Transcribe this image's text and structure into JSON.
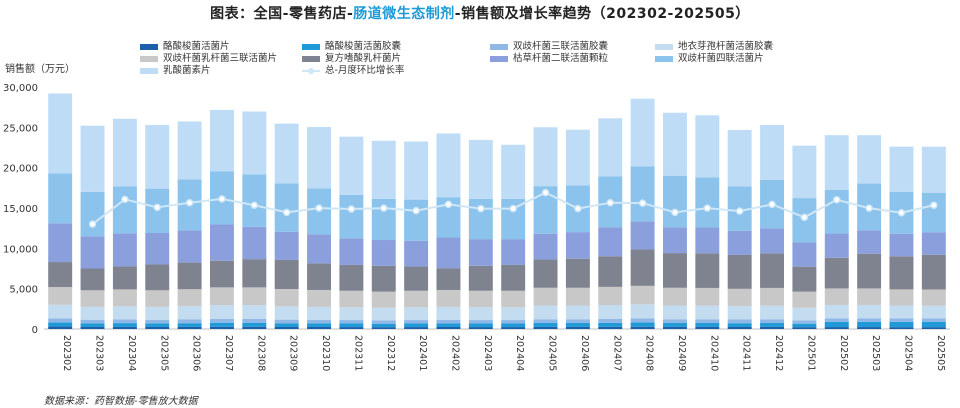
{
  "title_parts": {
    "prefix": "图表：全国-零售药店-",
    "highlight": "肠道微生态制剂",
    "suffix": "-销售额及增长率趋势（202302-202505）"
  },
  "source": "数据来源：药智数据-零售放大数据",
  "chart_data": {
    "type": "bar",
    "stacked": true,
    "ylabel": "销售额（万元）",
    "ylim": [
      0,
      30000
    ],
    "yticks": [
      0,
      5000,
      10000,
      15000,
      20000,
      25000,
      30000
    ],
    "ytick_labels": [
      "0",
      "5,000",
      "10,000",
      "15,000",
      "20,000",
      "25,000",
      "30,000"
    ],
    "categories": [
      "202302",
      "202303",
      "202304",
      "202305",
      "202306",
      "202307",
      "202308",
      "202309",
      "202310",
      "202311",
      "202312",
      "202401",
      "202402",
      "202403",
      "202404",
      "202405",
      "202406",
      "202407",
      "202408",
      "202409",
      "202410",
      "202411",
      "202412",
      "202501",
      "202502",
      "202503",
      "202504",
      "202505"
    ],
    "series": [
      {
        "name": "酪酸梭菌活菌片",
        "color": "#1d5fa8",
        "values": [
          300,
          250,
          260,
          250,
          260,
          280,
          280,
          250,
          250,
          240,
          230,
          240,
          250,
          240,
          240,
          260,
          260,
          270,
          280,
          260,
          260,
          250,
          260,
          230,
          240,
          240,
          230,
          230
        ]
      },
      {
        "name": "酪酸梭菌活菌胶囊",
        "color": "#1f9ad6",
        "values": [
          500,
          450,
          470,
          450,
          460,
          500,
          500,
          460,
          450,
          440,
          430,
          440,
          450,
          440,
          440,
          480,
          480,
          500,
          520,
          480,
          480,
          470,
          480,
          430,
          650,
          650,
          650,
          640
        ]
      },
      {
        "name": "双歧杆菌三联活菌胶囊",
        "color": "#8fb8e6",
        "values": [
          500,
          450,
          460,
          450,
          460,
          480,
          480,
          450,
          440,
          430,
          420,
          430,
          440,
          430,
          430,
          470,
          470,
          480,
          500,
          470,
          470,
          460,
          470,
          420,
          440,
          440,
          430,
          430
        ]
      },
      {
        "name": "地衣芽孢杆菌活菌胶囊",
        "color": "#c4dcef",
        "values": [
          1700,
          1600,
          1620,
          1600,
          1650,
          1700,
          1700,
          1650,
          1600,
          1580,
          1550,
          1580,
          1600,
          1580,
          1580,
          1700,
          1700,
          1720,
          1750,
          1700,
          1680,
          1650,
          1680,
          1550,
          1650,
          1650,
          1600,
          1600
        ]
      },
      {
        "name": "双歧杆菌乳杆菌三联活菌片",
        "color": "#c8c8c8",
        "values": [
          2200,
          2050,
          2100,
          2050,
          2100,
          2200,
          2200,
          2150,
          2100,
          2050,
          2000,
          2050,
          2100,
          2050,
          2050,
          2200,
          2200,
          2250,
          2300,
          2200,
          2200,
          2150,
          2200,
          2000,
          2050,
          2050,
          2000,
          2000
        ]
      },
      {
        "name": "复方嗜酸乳杆菌片",
        "color": "#7f8390",
        "values": [
          3100,
          2700,
          2850,
          3200,
          3300,
          3300,
          3500,
          3600,
          3300,
          3200,
          3200,
          3000,
          2700,
          3100,
          3200,
          3500,
          3600,
          3800,
          4500,
          4300,
          4300,
          4200,
          4300,
          3100,
          3800,
          4300,
          4100,
          4300
        ]
      },
      {
        "name": "枯草杆菌二联活菌颗粒",
        "color": "#8a9fdc",
        "values": [
          4800,
          4000,
          4100,
          3900,
          4000,
          4500,
          4000,
          3500,
          3600,
          3300,
          3200,
          3200,
          3800,
          3300,
          3200,
          3200,
          3300,
          3600,
          3500,
          3200,
          3200,
          3000,
          3100,
          3000,
          3000,
          2900,
          2800,
          2800
        ]
      },
      {
        "name": "双歧杆菌四联活菌片",
        "color": "#8bc3ec",
        "values": [
          6200,
          5500,
          5800,
          5500,
          6300,
          6600,
          6500,
          6000,
          5700,
          5400,
          5100,
          5100,
          5000,
          5000,
          5000,
          5900,
          5800,
          6300,
          6800,
          6400,
          6200,
          5500,
          6000,
          5500,
          5400,
          5800,
          5200,
          4900
        ]
      },
      {
        "name": "乳酸菌素片",
        "color": "#bfdcf7",
        "values": [
          9900,
          8200,
          8400,
          7900,
          7200,
          7600,
          7800,
          7400,
          7600,
          7200,
          7200,
          7200,
          7900,
          7300,
          6700,
          7300,
          6900,
          7200,
          8400,
          7800,
          7700,
          7000,
          6800,
          6500,
          6800,
          6000,
          5600,
          5700
        ]
      }
    ],
    "line_series": {
      "name": "总-月度环比增长率",
      "color": "#cfe7f7",
      "values": [
        null,
        -3.6,
        2.3,
        0.4,
        1.5,
        2.4,
        0.9,
        -0.8,
        0.2,
        0.0,
        0.2,
        -0.4,
        1.1,
        0.1,
        0.1,
        3.9,
        0.1,
        1.5,
        1.4,
        -0.8,
        0.2,
        -0.5,
        1.1,
        -2.0,
        2.2,
        0.2,
        -0.9,
        0.9
      ]
    },
    "legend_position": "top",
    "grid": false
  }
}
